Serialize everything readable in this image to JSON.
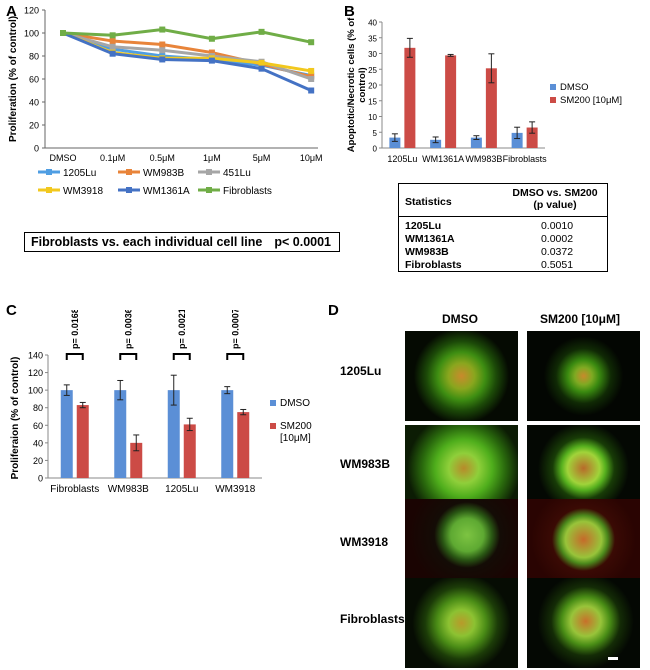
{
  "panels": {
    "a": "A",
    "b": "B",
    "c": "C",
    "d": "D"
  },
  "colors": {
    "c1205Lu": "#4f9ee3",
    "cWM983B": "#e8843a",
    "c451Lu": "#a6a6a6",
    "cWM3918": "#f2c81e",
    "cWM1361A": "#4472c4",
    "cFibroblasts": "#70ad47",
    "dmso": "#5b8fd6",
    "sm200": "#cc4b46"
  },
  "chart_data": [
    {
      "id": "A",
      "type": "line",
      "ylabel": "Proliferation (% of control)",
      "xlabel": "",
      "ylim": [
        0,
        120
      ],
      "yticks": [
        0,
        20,
        40,
        60,
        80,
        100,
        120
      ],
      "categories": [
        "DMSO",
        "0.1μM",
        "0.5μM",
        "1μM",
        "5μM",
        "10μM"
      ],
      "series": [
        {
          "name": "1205Lu",
          "values": [
            100,
            86,
            80,
            77,
            72,
            63
          ]
        },
        {
          "name": "WM983B",
          "values": [
            100,
            93,
            90,
            83,
            73,
            62
          ]
        },
        {
          "name": "451Lu",
          "values": [
            100,
            88,
            85,
            80,
            75,
            60
          ]
        },
        {
          "name": "WM3918",
          "values": [
            100,
            83,
            78,
            78,
            74,
            67
          ]
        },
        {
          "name": "WM1361A",
          "values": [
            100,
            82,
            77,
            76,
            69,
            50
          ]
        },
        {
          "name": "Fibroblasts",
          "values": [
            100,
            98,
            103,
            95,
            101,
            92
          ]
        }
      ],
      "legend": [
        "1205Lu",
        "WM983B",
        "451Lu",
        "WM3918",
        "WM1361A",
        "Fibroblasts"
      ]
    },
    {
      "id": "B",
      "type": "bar",
      "ylabel": "Apoptotic/Necrotic cells (% of control)",
      "ylim": [
        0,
        40
      ],
      "yticks": [
        0,
        5,
        10,
        15,
        20,
        25,
        30,
        35,
        40
      ],
      "categories": [
        "1205Lu",
        "WM1361A",
        "WM983B",
        "Fibroblasts"
      ],
      "series": [
        {
          "name": "DMSO",
          "values": [
            3.3,
            2.6,
            3.3,
            4.8
          ],
          "errors": [
            1.2,
            0.9,
            0.6,
            1.8
          ]
        },
        {
          "name": "SM200 [10μM]",
          "values": [
            31.8,
            29.4,
            25.3,
            6.5
          ],
          "errors": [
            3.0,
            0.3,
            4.6,
            1.8
          ]
        }
      ],
      "legend": [
        "DMSO",
        "SM200 [10μM]"
      ]
    },
    {
      "id": "C",
      "type": "bar",
      "ylabel": "Proliferaion (% of control)",
      "ylim": [
        0,
        140
      ],
      "yticks": [
        0,
        20,
        40,
        60,
        80,
        100,
        120,
        140
      ],
      "categories": [
        "Fibroblasts",
        "WM983B",
        "1205Lu",
        "WM3918"
      ],
      "series": [
        {
          "name": "DMSO",
          "values": [
            100,
            100,
            100,
            100
          ],
          "errors": [
            6,
            11,
            17,
            4
          ]
        },
        {
          "name": "SM200 [10μM]",
          "values": [
            83,
            40,
            61,
            75
          ],
          "errors": [
            3,
            9,
            7,
            3
          ]
        }
      ],
      "pvalues": [
        "p= 0.0168",
        "p= 0.0036",
        "p= 0.0021",
        "p= 0.0007"
      ],
      "legend": [
        "DMSO",
        "SM200\n[10μM]"
      ]
    }
  ],
  "legend_text": {
    "b_dmso": "DMSO",
    "b_sm200": "SM200 [10μM]",
    "c_dmso": "DMSO",
    "c_sm200_1": "SM200",
    "c_sm200_2": "[10μM]"
  },
  "pvalue_box": {
    "label": "Fibroblasts vs. each individual cell line",
    "value": "p< 0.0001"
  },
  "stats_table": {
    "head1": "Statistics",
    "head2a": "DMSO vs. SM200",
    "head2b": "(p value)",
    "rows": [
      {
        "name": "1205Lu",
        "value": "0.0010"
      },
      {
        "name": "WM1361A",
        "value": "0.0002"
      },
      {
        "name": "WM983B",
        "value": "0.0372"
      },
      {
        "name": "Fibroblasts",
        "value": "0.5051"
      }
    ]
  },
  "panel_d": {
    "col_dmso": "DMSO",
    "col_sm200": "SM200 [10μM]",
    "rows": [
      "1205Lu",
      "WM983B",
      "WM3918",
      "Fibroblasts"
    ]
  }
}
